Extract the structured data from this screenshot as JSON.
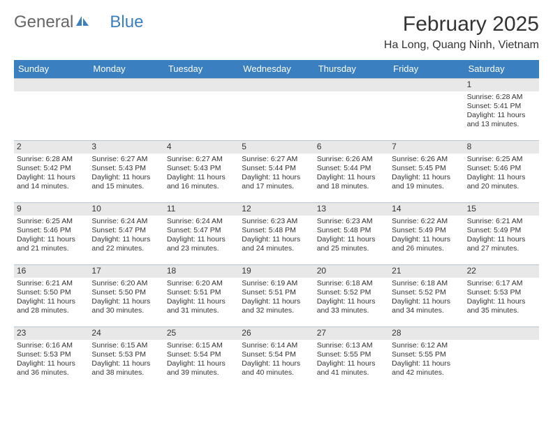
{
  "logo": {
    "text1": "General",
    "text2": "Blue"
  },
  "title": "February 2025",
  "location": "Ha Long, Quang Ninh, Vietnam",
  "colors": {
    "header_bg": "#3a7fbf",
    "header_text": "#ffffff",
    "daynum_bg": "#e8e8e8",
    "border": "#b8c5d0",
    "text": "#333333",
    "logo_gray": "#666666",
    "logo_blue": "#3a7fbf"
  },
  "weekdays": [
    "Sunday",
    "Monday",
    "Tuesday",
    "Wednesday",
    "Thursday",
    "Friday",
    "Saturday"
  ],
  "weeks": [
    [
      {
        "n": "",
        "sr": "",
        "ss": "",
        "dl": ""
      },
      {
        "n": "",
        "sr": "",
        "ss": "",
        "dl": ""
      },
      {
        "n": "",
        "sr": "",
        "ss": "",
        "dl": ""
      },
      {
        "n": "",
        "sr": "",
        "ss": "",
        "dl": ""
      },
      {
        "n": "",
        "sr": "",
        "ss": "",
        "dl": ""
      },
      {
        "n": "",
        "sr": "",
        "ss": "",
        "dl": ""
      },
      {
        "n": "1",
        "sr": "Sunrise: 6:28 AM",
        "ss": "Sunset: 5:41 PM",
        "dl": "Daylight: 11 hours and 13 minutes."
      }
    ],
    [
      {
        "n": "2",
        "sr": "Sunrise: 6:28 AM",
        "ss": "Sunset: 5:42 PM",
        "dl": "Daylight: 11 hours and 14 minutes."
      },
      {
        "n": "3",
        "sr": "Sunrise: 6:27 AM",
        "ss": "Sunset: 5:43 PM",
        "dl": "Daylight: 11 hours and 15 minutes."
      },
      {
        "n": "4",
        "sr": "Sunrise: 6:27 AM",
        "ss": "Sunset: 5:43 PM",
        "dl": "Daylight: 11 hours and 16 minutes."
      },
      {
        "n": "5",
        "sr": "Sunrise: 6:27 AM",
        "ss": "Sunset: 5:44 PM",
        "dl": "Daylight: 11 hours and 17 minutes."
      },
      {
        "n": "6",
        "sr": "Sunrise: 6:26 AM",
        "ss": "Sunset: 5:44 PM",
        "dl": "Daylight: 11 hours and 18 minutes."
      },
      {
        "n": "7",
        "sr": "Sunrise: 6:26 AM",
        "ss": "Sunset: 5:45 PM",
        "dl": "Daylight: 11 hours and 19 minutes."
      },
      {
        "n": "8",
        "sr": "Sunrise: 6:25 AM",
        "ss": "Sunset: 5:46 PM",
        "dl": "Daylight: 11 hours and 20 minutes."
      }
    ],
    [
      {
        "n": "9",
        "sr": "Sunrise: 6:25 AM",
        "ss": "Sunset: 5:46 PM",
        "dl": "Daylight: 11 hours and 21 minutes."
      },
      {
        "n": "10",
        "sr": "Sunrise: 6:24 AM",
        "ss": "Sunset: 5:47 PM",
        "dl": "Daylight: 11 hours and 22 minutes."
      },
      {
        "n": "11",
        "sr": "Sunrise: 6:24 AM",
        "ss": "Sunset: 5:47 PM",
        "dl": "Daylight: 11 hours and 23 minutes."
      },
      {
        "n": "12",
        "sr": "Sunrise: 6:23 AM",
        "ss": "Sunset: 5:48 PM",
        "dl": "Daylight: 11 hours and 24 minutes."
      },
      {
        "n": "13",
        "sr": "Sunrise: 6:23 AM",
        "ss": "Sunset: 5:48 PM",
        "dl": "Daylight: 11 hours and 25 minutes."
      },
      {
        "n": "14",
        "sr": "Sunrise: 6:22 AM",
        "ss": "Sunset: 5:49 PM",
        "dl": "Daylight: 11 hours and 26 minutes."
      },
      {
        "n": "15",
        "sr": "Sunrise: 6:21 AM",
        "ss": "Sunset: 5:49 PM",
        "dl": "Daylight: 11 hours and 27 minutes."
      }
    ],
    [
      {
        "n": "16",
        "sr": "Sunrise: 6:21 AM",
        "ss": "Sunset: 5:50 PM",
        "dl": "Daylight: 11 hours and 28 minutes."
      },
      {
        "n": "17",
        "sr": "Sunrise: 6:20 AM",
        "ss": "Sunset: 5:50 PM",
        "dl": "Daylight: 11 hours and 30 minutes."
      },
      {
        "n": "18",
        "sr": "Sunrise: 6:20 AM",
        "ss": "Sunset: 5:51 PM",
        "dl": "Daylight: 11 hours and 31 minutes."
      },
      {
        "n": "19",
        "sr": "Sunrise: 6:19 AM",
        "ss": "Sunset: 5:51 PM",
        "dl": "Daylight: 11 hours and 32 minutes."
      },
      {
        "n": "20",
        "sr": "Sunrise: 6:18 AM",
        "ss": "Sunset: 5:52 PM",
        "dl": "Daylight: 11 hours and 33 minutes."
      },
      {
        "n": "21",
        "sr": "Sunrise: 6:18 AM",
        "ss": "Sunset: 5:52 PM",
        "dl": "Daylight: 11 hours and 34 minutes."
      },
      {
        "n": "22",
        "sr": "Sunrise: 6:17 AM",
        "ss": "Sunset: 5:53 PM",
        "dl": "Daylight: 11 hours and 35 minutes."
      }
    ],
    [
      {
        "n": "23",
        "sr": "Sunrise: 6:16 AM",
        "ss": "Sunset: 5:53 PM",
        "dl": "Daylight: 11 hours and 36 minutes."
      },
      {
        "n": "24",
        "sr": "Sunrise: 6:15 AM",
        "ss": "Sunset: 5:53 PM",
        "dl": "Daylight: 11 hours and 38 minutes."
      },
      {
        "n": "25",
        "sr": "Sunrise: 6:15 AM",
        "ss": "Sunset: 5:54 PM",
        "dl": "Daylight: 11 hours and 39 minutes."
      },
      {
        "n": "26",
        "sr": "Sunrise: 6:14 AM",
        "ss": "Sunset: 5:54 PM",
        "dl": "Daylight: 11 hours and 40 minutes."
      },
      {
        "n": "27",
        "sr": "Sunrise: 6:13 AM",
        "ss": "Sunset: 5:55 PM",
        "dl": "Daylight: 11 hours and 41 minutes."
      },
      {
        "n": "28",
        "sr": "Sunrise: 6:12 AM",
        "ss": "Sunset: 5:55 PM",
        "dl": "Daylight: 11 hours and 42 minutes."
      },
      {
        "n": "",
        "sr": "",
        "ss": "",
        "dl": ""
      }
    ]
  ]
}
